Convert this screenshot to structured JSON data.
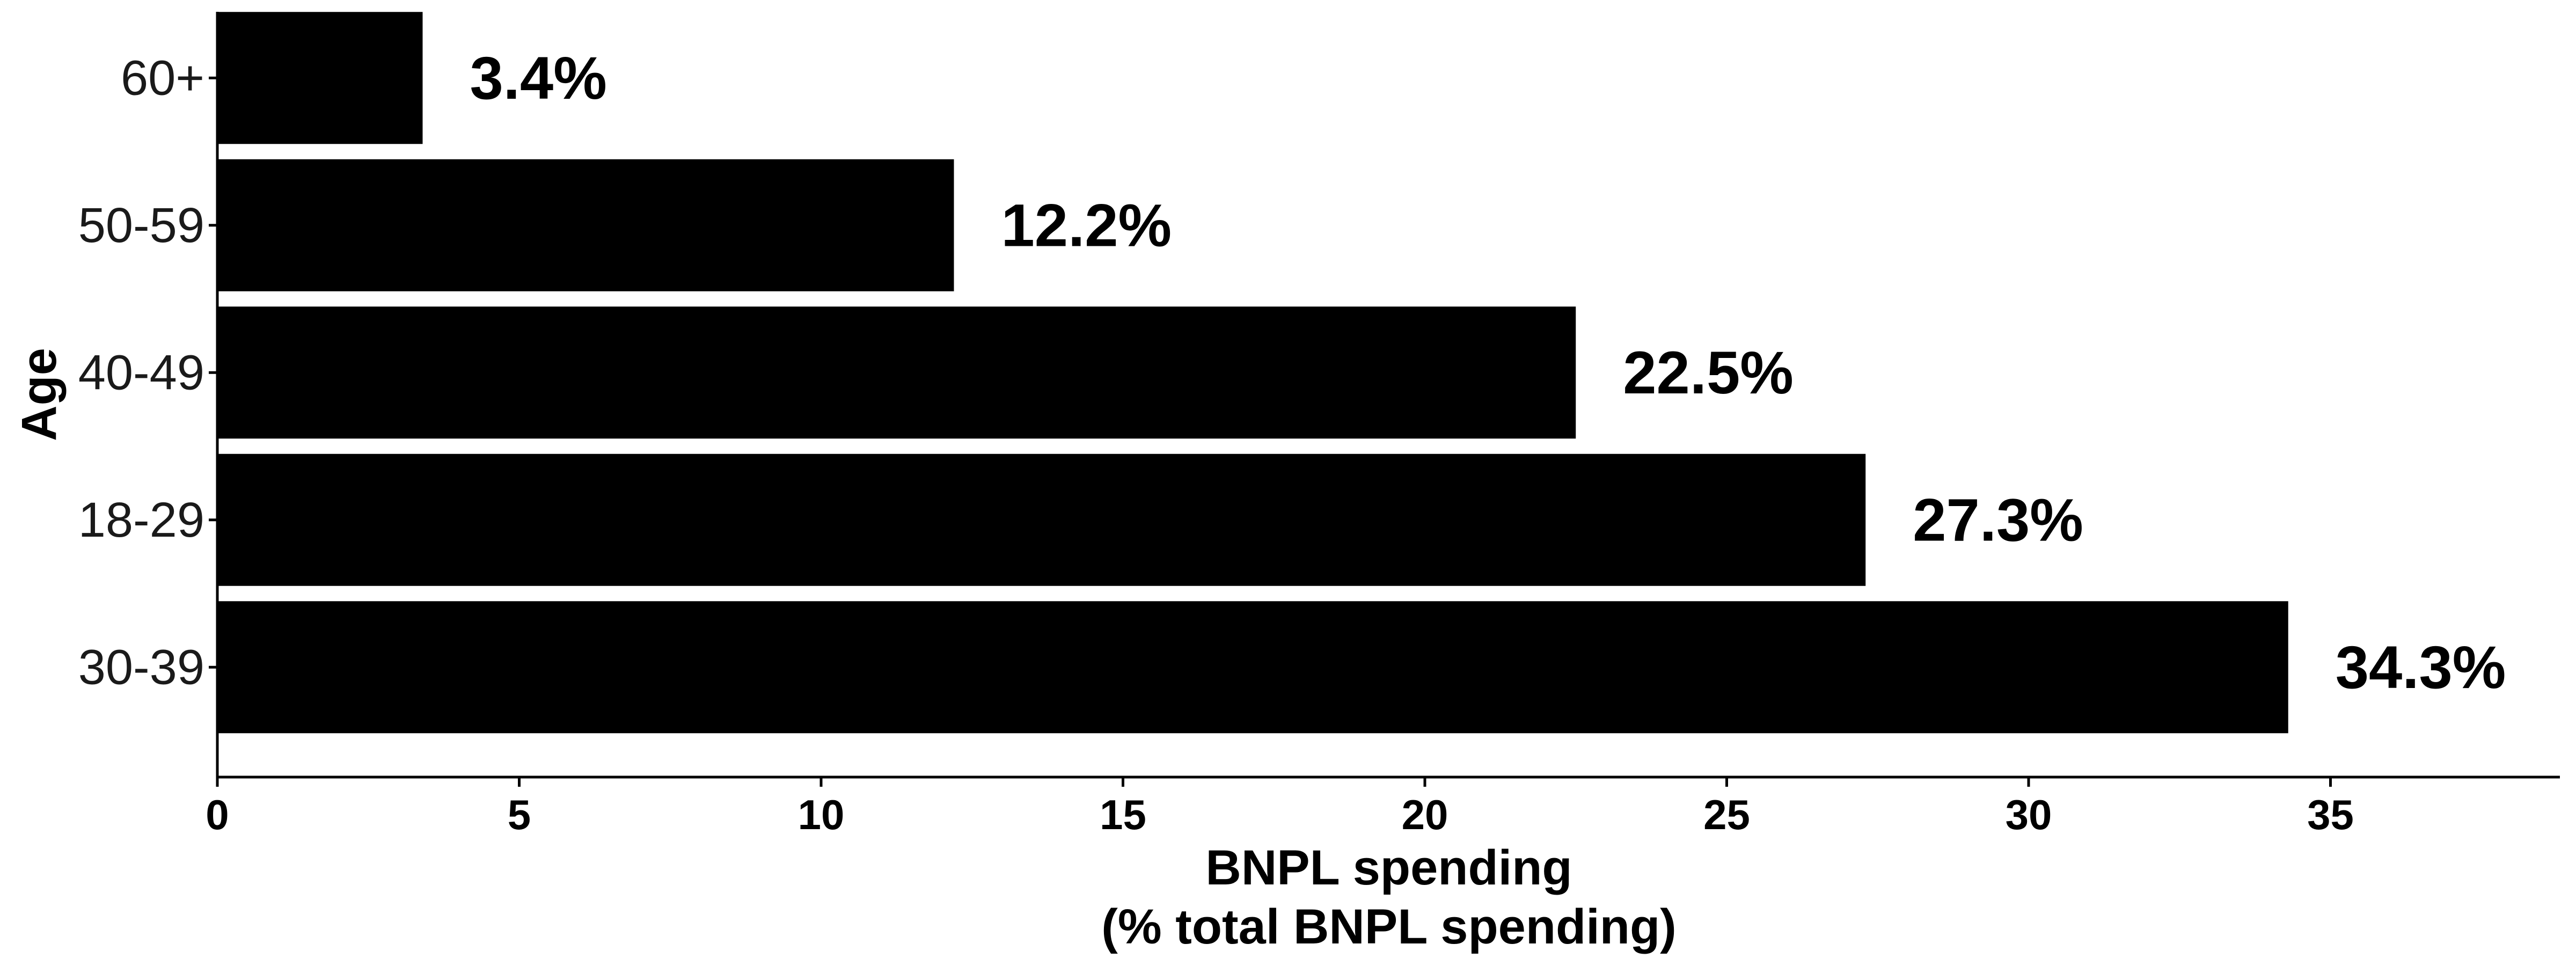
{
  "chart_data": {
    "type": "bar",
    "orientation": "horizontal",
    "categories": [
      "60+",
      "50-59",
      "40-49",
      "18-29",
      "30-39"
    ],
    "values": [
      3.4,
      12.2,
      22.5,
      27.3,
      34.3
    ],
    "value_labels": [
      "3.4%",
      "12.2%",
      "22.5%",
      "27.3%",
      "34.3%"
    ],
    "xlabel_lines": [
      "BNPL spending",
      "(% total BNPL spending)"
    ],
    "ylabel": "Age",
    "xlim": [
      0,
      38.8
    ],
    "xticks": [
      0,
      5,
      10,
      15,
      20,
      25,
      30,
      35
    ],
    "grid": false,
    "legend": "none",
    "bar_color": "#000000"
  }
}
